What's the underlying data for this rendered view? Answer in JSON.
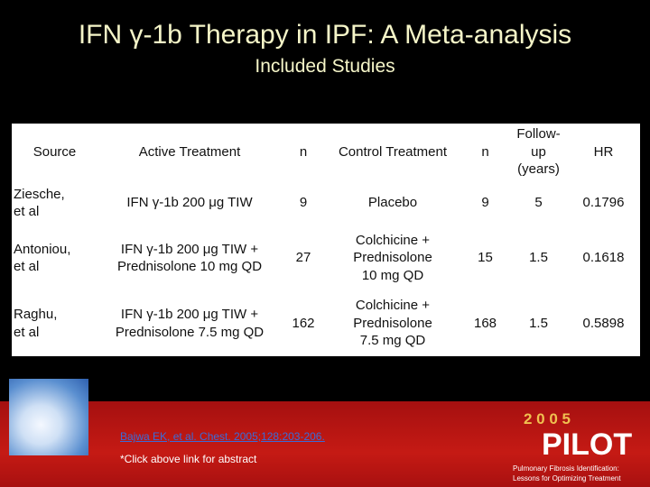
{
  "header": {
    "title": "IFN γ-1b Therapy in IPF: A Meta-analysis",
    "subtitle": "Included Studies"
  },
  "table": {
    "columns": [
      "Source",
      "Active Treatment",
      "n",
      "Control Treatment",
      "n",
      [
        "Follow-",
        "up",
        "(years)"
      ],
      "HR"
    ],
    "rows": [
      [
        [
          "Ziesche,",
          "et al"
        ],
        [
          "IFN γ-1b 200 μg TIW"
        ],
        9,
        [
          "Placebo"
        ],
        9,
        5,
        0.1796
      ],
      [
        [
          "Antoniou,",
          "et al"
        ],
        [
          "IFN γ-1b 200 μg TIW +",
          "Prednisolone 10 mg QD"
        ],
        27,
        [
          "Colchicine +",
          "Prednisolone",
          "10 mg QD"
        ],
        15,
        1.5,
        0.1618
      ],
      [
        [
          "Raghu,",
          "et al"
        ],
        [
          "IFN γ-1b 200 μg TIW +",
          "Prednisolone 7.5 mg QD"
        ],
        162,
        [
          "Colchicine +",
          "Prednisolone",
          "7.5 mg QD"
        ],
        168,
        1.5,
        0.5898
      ]
    ]
  },
  "footer": {
    "citation": "Bajwa EK, et al. Chest. 2005;128:203-206.",
    "note": "*Click above link for abstract",
    "logo": {
      "year": "2  0  0  5",
      "name": "PILOT",
      "line1": "Pulmonary Fibrosis Identification:",
      "line2": "Lessons for Optimizing Treatment"
    }
  }
}
